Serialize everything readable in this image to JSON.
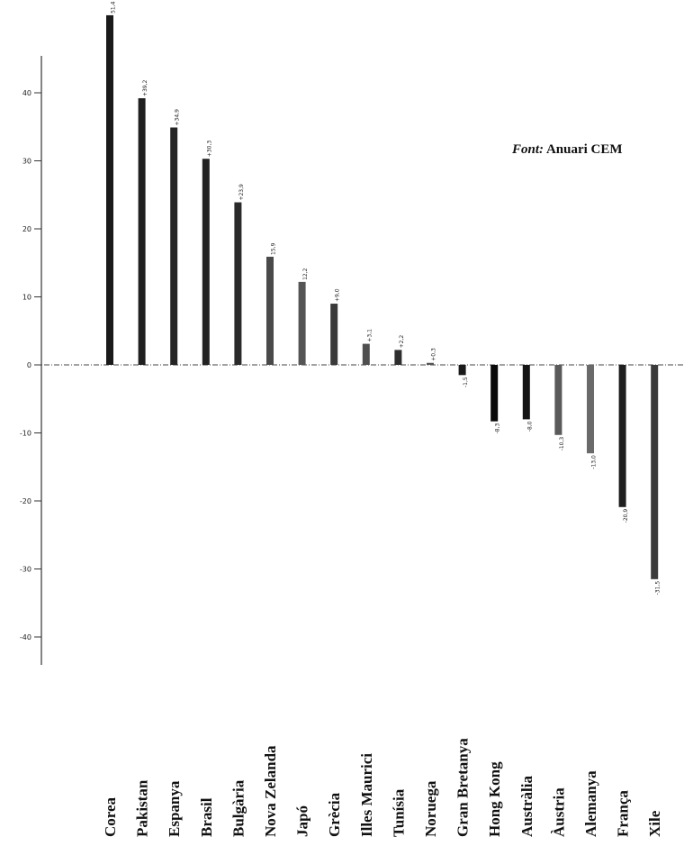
{
  "source": {
    "prefix": "Font:",
    "text": "Anuari CEM"
  },
  "chart_data": {
    "type": "bar",
    "categories": [
      "Corea",
      "Pakistan",
      "Espanya",
      "Brasil",
      "Bulgària",
      "Nova Zelanda",
      "Japó",
      "Grècia",
      "Illes Maurici",
      "Tunísia",
      "Noruega",
      "Gran Bretanya",
      "Hong Kong",
      "Austràlia",
      "Àustria",
      "Alemanya",
      "França",
      "Xile"
    ],
    "values": [
      51.4,
      39.2,
      34.9,
      30.3,
      23.9,
      15.9,
      12.2,
      9.0,
      3.1,
      2.2,
      0.3,
      -1.5,
      -8.3,
      -8.0,
      -10.3,
      -13.0,
      -20.9,
      -31.5
    ],
    "value_labels": [
      "51,4",
      "+39,2",
      "+34,9",
      "+30,3",
      "+23,9",
      "15,9",
      "12,2",
      "+9,0",
      "+3,1",
      "+2,2",
      "+0,3",
      "-1,5",
      "-8,3",
      "-8,0",
      "-10,3",
      "-13,0",
      "-20,9",
      "-31,5"
    ],
    "colors": [
      "#1a1a1a",
      "#202020",
      "#252525",
      "#232323",
      "#2a2a2a",
      "#4a4a4a",
      "#555555",
      "#3a3a3a",
      "#4f4f4f",
      "#2e2e2e",
      "#555555",
      "#1a1a1a",
      "#0a0a0a",
      "#151515",
      "#5a5a5a",
      "#6a6a6a",
      "#1f1f1f",
      "#3a3a3a"
    ],
    "y_ticks": [
      40,
      30,
      20,
      10,
      0,
      -10,
      -20,
      -30,
      -40
    ],
    "y_tick_labels": [
      "40",
      "30",
      "20",
      "10",
      "0",
      "-10",
      "-20",
      "-30",
      "-40"
    ],
    "ylim": [
      -44,
      54
    ],
    "title": "",
    "xlabel": "",
    "ylabel": "",
    "grid": false,
    "legend": "none"
  }
}
